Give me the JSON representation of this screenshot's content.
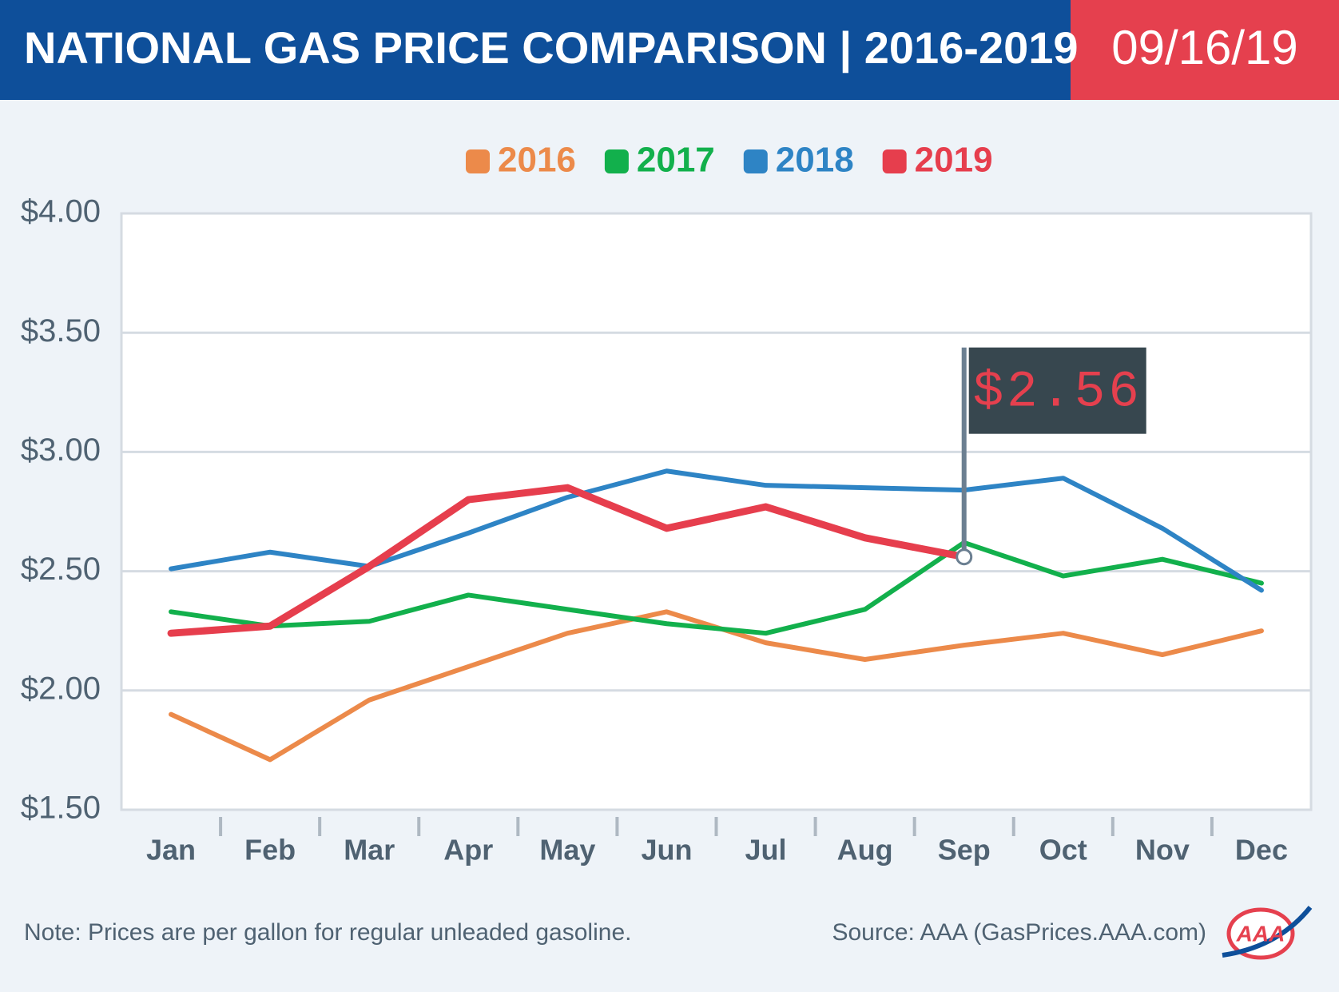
{
  "chart_data": {
    "type": "line",
    "title": "NATIONAL GAS PRICE COMPARISON | 2016-2019",
    "date": "09/16/19",
    "categories": [
      "Jan",
      "Feb",
      "Mar",
      "Apr",
      "May",
      "Jun",
      "Jul",
      "Aug",
      "Sep",
      "Oct",
      "Nov",
      "Dec"
    ],
    "series": [
      {
        "name": "2016",
        "color": "#ec8a4a",
        "values": [
          1.9,
          1.71,
          1.96,
          2.1,
          2.24,
          2.33,
          2.2,
          2.13,
          2.19,
          2.24,
          2.15,
          2.25
        ]
      },
      {
        "name": "2017",
        "color": "#12b04c",
        "values": [
          2.33,
          2.27,
          2.29,
          2.4,
          2.34,
          2.28,
          2.24,
          2.34,
          2.62,
          2.48,
          2.55,
          2.45
        ]
      },
      {
        "name": "2018",
        "color": "#2e84c5",
        "values": [
          2.51,
          2.58,
          2.52,
          2.66,
          2.81,
          2.92,
          2.86,
          2.85,
          2.84,
          2.89,
          2.68,
          2.42
        ]
      },
      {
        "name": "2019",
        "color": "#e63e4d",
        "values": [
          2.24,
          2.27,
          2.52,
          2.8,
          2.85,
          2.68,
          2.77,
          2.64,
          2.56,
          null,
          null,
          null
        ]
      }
    ],
    "annotation": "$2.56",
    "ylim": [
      1.5,
      4.0
    ],
    "yticks": [
      {
        "value": 1.5,
        "label": "$1.50"
      },
      {
        "value": 2.0,
        "label": "$2.00"
      },
      {
        "value": 2.5,
        "label": "$2.50"
      },
      {
        "value": 3.0,
        "label": "$3.00"
      },
      {
        "value": 3.5,
        "label": "$3.50"
      },
      {
        "value": 4.0,
        "label": "$4.00"
      }
    ],
    "grid": true,
    "legend": "top",
    "note": "Note: Prices are per gallon for regular unleaded gasoline.",
    "source": "Source: AAA (GasPrices.AAA.com)",
    "logo_text": "AAA"
  }
}
